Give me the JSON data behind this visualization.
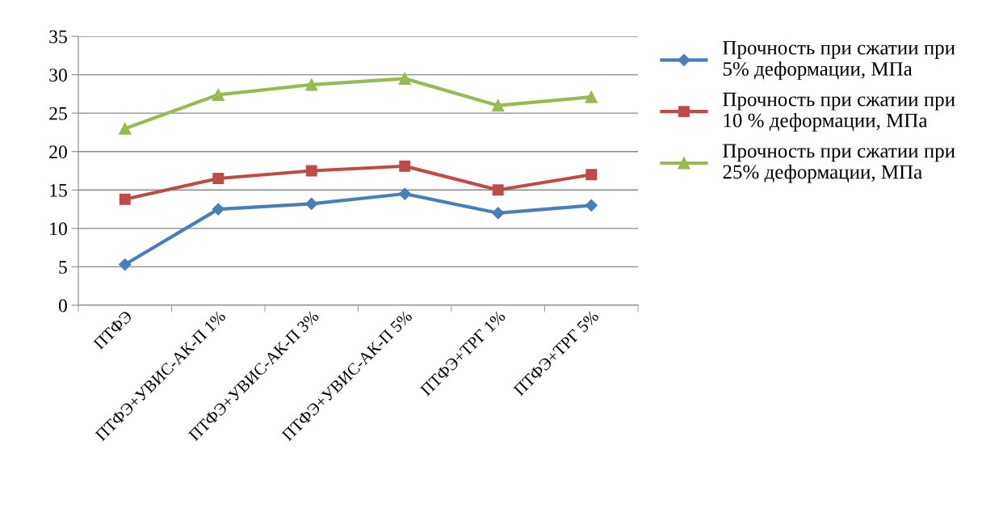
{
  "chart_data": {
    "type": "line",
    "categories": [
      "ПТФЭ",
      "ПТФЭ+УВИС-АК-П 1%",
      "ПТФЭ+УВИС-АК-П 3%",
      "ПТФЭ+УВИС-АК-П 5%",
      "ПТФЭ+ТРГ 1%",
      "ПТФЭ+ТРГ 5%"
    ],
    "series": [
      {
        "name": "Прочность при сжатии при 5% деформации, МПа",
        "color": "#4a7ebb",
        "marker": "diamond",
        "values": [
          5.3,
          12.5,
          13.2,
          14.5,
          12,
          13
        ]
      },
      {
        "name": "Прочность при сжатии при 10 % деформации, МПа",
        "color": "#be4b48",
        "marker": "square",
        "values": [
          13.8,
          16.5,
          17.5,
          18.1,
          15,
          17
        ]
      },
      {
        "name": "Прочность при сжатии при 25% деформации, МПа",
        "color": "#98b954",
        "marker": "triangle",
        "values": [
          23,
          27.4,
          28.7,
          29.5,
          26,
          27.1
        ]
      }
    ],
    "ylim": [
      0,
      35
    ],
    "yticks": [
      0,
      5,
      10,
      15,
      20,
      25,
      30,
      35
    ],
    "grid": "y",
    "legend": "right",
    "line_style": "solid"
  }
}
